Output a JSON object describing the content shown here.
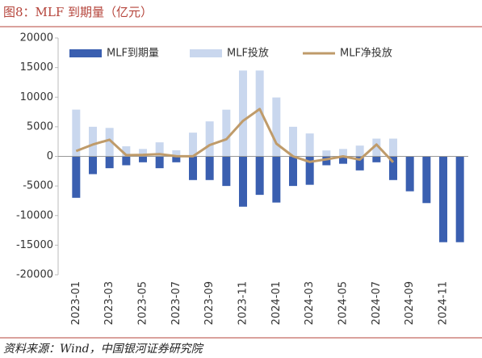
{
  "chart_data": {
    "type": "bar",
    "title": "图8：MLF 到期量（亿元）",
    "source": "资料来源：Wind，中国银河证券研究院",
    "categories": [
      "2023-01",
      null,
      "2023-03",
      null,
      "2023-05",
      null,
      "2023-07",
      null,
      "2023-09",
      null,
      "2023-11",
      null,
      "2024-01",
      null,
      "2024-03",
      null,
      "2024-05",
      null,
      "2024-07",
      null,
      "2024-09",
      null,
      "2024-11",
      null
    ],
    "series": [
      {
        "name": "MLF到期量",
        "type": "bar",
        "color": "#3a5fb0",
        "values": [
          -7000,
          -3000,
          -2000,
          -1500,
          -1000,
          -2000,
          -1000,
          -4000,
          -4000,
          -5000,
          -8500,
          -6500,
          -7800,
          -5000,
          -4800,
          -1500,
          -1250,
          -2370,
          -1000,
          -4000,
          -5900,
          -7890,
          -14500,
          -14500
        ]
      },
      {
        "name": "MLF投放",
        "type": "bar",
        "color": "#c9d7ee",
        "values": [
          7900,
          5000,
          4810,
          1700,
          1250,
          2370,
          1030,
          4010,
          5910,
          7890,
          14500,
          14500,
          9950,
          5000,
          3870,
          1000,
          1250,
          1820,
          3000,
          3000,
          null,
          null,
          null,
          null
        ]
      },
      {
        "name": "MLF净投放",
        "type": "line",
        "color": "#bf9b6a",
        "values": [
          900,
          2000,
          2810,
          200,
          250,
          370,
          30,
          10,
          1910,
          2890,
          6000,
          8000,
          2150,
          0,
          -930,
          -500,
          0,
          -550,
          2000,
          -1000,
          null,
          null,
          null,
          null
        ]
      }
    ],
    "ylim": [
      -20000,
      20000
    ],
    "yticks": [
      -20000,
      -15000,
      -10000,
      -5000,
      0,
      5000,
      10000,
      15000,
      20000
    ],
    "legend": "top"
  }
}
